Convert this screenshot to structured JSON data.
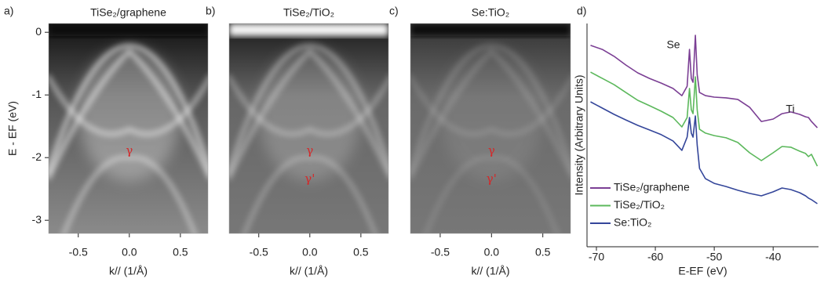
{
  "chart_data": [
    {
      "type": "image",
      "panel_label": "a)",
      "title": "TiSe₂/graphene",
      "xlabel": "k// (1/Å)",
      "ylabel": "E - EF (eV)",
      "xlim": [
        -0.79,
        0.77
      ],
      "ylim": [
        -3.21,
        0.14
      ],
      "xticks": [
        -0.5,
        {
          "value": 0,
          "label": "0.0"
        },
        0.5
      ],
      "yticks": [
        0,
        -1,
        -2,
        -3
      ],
      "annotations": [
        "γ"
      ]
    },
    {
      "type": "image",
      "panel_label": "b)",
      "title": "TiSe₂/TiO₂",
      "xlabel": "k// (1/Å)",
      "xlim": [
        -0.79,
        0.77
      ],
      "ylim": [
        -3.21,
        0.14
      ],
      "xticks": [
        -0.5,
        {
          "value": 0,
          "label": "0.0"
        },
        0.5
      ],
      "annotations": [
        "γ",
        "γ'"
      ]
    },
    {
      "type": "image",
      "panel_label": "c)",
      "title": "Se:TiO₂",
      "xlabel": "k// (1/Å)",
      "xlim": [
        -0.79,
        0.77
      ],
      "ylim": [
        -3.21,
        0.14
      ],
      "xticks": [
        -0.5,
        {
          "value": 0,
          "label": "0.0"
        },
        0.5
      ],
      "annotations": [
        "γ",
        "γ'"
      ]
    },
    {
      "type": "line",
      "panel_label": "d)",
      "xlabel": "E-EF (eV)",
      "ylabel": "Intensity (Arbitrary Units)",
      "xlim": [
        -71.6,
        -32.3
      ],
      "ylim": [
        0,
        100
      ],
      "xticks": [
        -70,
        -60,
        -50,
        -40
      ],
      "annotations": [
        "Se",
        "Ti"
      ],
      "legend": "lower left",
      "x": [
        -71,
        -69,
        -67,
        -65,
        -63,
        -61,
        -59,
        -57,
        -55.5,
        -54.6,
        -54.2,
        -53.9,
        -53.6,
        -53.2,
        -52.9,
        -52.5,
        -51.5,
        -50,
        -48,
        -46,
        -44,
        -42,
        -40,
        -38.5,
        -37,
        -35.5,
        -34.5,
        -34,
        -33.5,
        -32.5
      ],
      "series": [
        {
          "name": "TiSe₂/graphene",
          "color": "#7b3f94",
          "values": [
            90.2,
            88.4,
            85.3,
            81.4,
            77.9,
            75.4,
            73.3,
            70.9,
            67.7,
            71.9,
            88.4,
            75.4,
            73.7,
            94.7,
            77.2,
            69.1,
            67.7,
            67.0,
            66.7,
            66.0,
            62.5,
            56.1,
            57.2,
            59.6,
            60.4,
            59.3,
            58.2,
            57.9,
            56.1,
            53.3
          ]
        },
        {
          "name": "TiSe₂/TiO₂",
          "color": "#5cb85c",
          "values": [
            78.2,
            75.4,
            72.6,
            69.1,
            65.6,
            63.2,
            60.7,
            57.9,
            53.7,
            57.9,
            70.9,
            61.4,
            59.6,
            76.1,
            61.4,
            52.6,
            50.9,
            49.8,
            48.8,
            46.7,
            42.1,
            38.6,
            42.1,
            44.9,
            44.6,
            42.8,
            41.8,
            40.4,
            41.4,
            36.1
          ]
        },
        {
          "name": "Se:TiO₂",
          "color": "#34469a",
          "values": [
            64.9,
            62.1,
            59.3,
            56.8,
            54.4,
            52.3,
            50.2,
            47.4,
            43.2,
            49.1,
            57.9,
            50.9,
            49.1,
            58.6,
            45.6,
            35.1,
            30.5,
            28.4,
            27.0,
            25.3,
            23.9,
            22.8,
            24.6,
            26.3,
            25.6,
            24.2,
            22.8,
            21.8,
            21.1,
            19.3
          ]
        }
      ]
    }
  ]
}
